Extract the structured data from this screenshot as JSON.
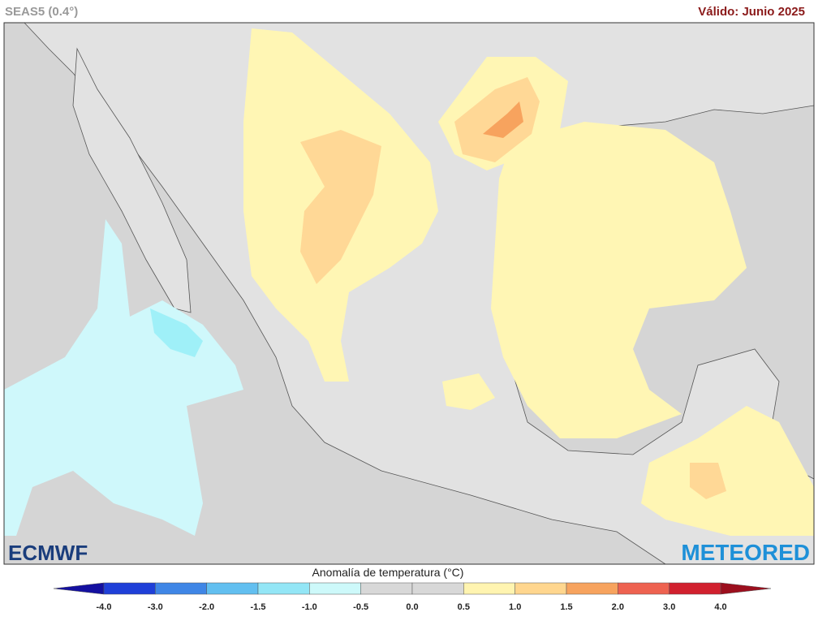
{
  "header": {
    "model": "SEAS5 (0.4°)",
    "valid": "Válido: Junio 2025"
  },
  "logos": {
    "left": "ECMWF",
    "right": "METEORED"
  },
  "legend": {
    "title": "Anomalía de temperatura (°C)",
    "ticks": [
      "-4.0",
      "-3.0",
      "-2.0",
      "-1.5",
      "-1.0",
      "-0.5",
      "0.0",
      "0.5",
      "1.0",
      "1.5",
      "2.0",
      "3.0",
      "4.0"
    ],
    "low_color": "#1410a0",
    "colors": [
      "#1f3fd8",
      "#3f86e6",
      "#62bff0",
      "#93e6f6",
      "#cdf9fa",
      "#d8d8d8",
      "#d8d8d8",
      "#fff4b0",
      "#ffd68e",
      "#f7a35e",
      "#ee6250",
      "#d1202e"
    ],
    "high_color": "#9c0f1e"
  }
}
